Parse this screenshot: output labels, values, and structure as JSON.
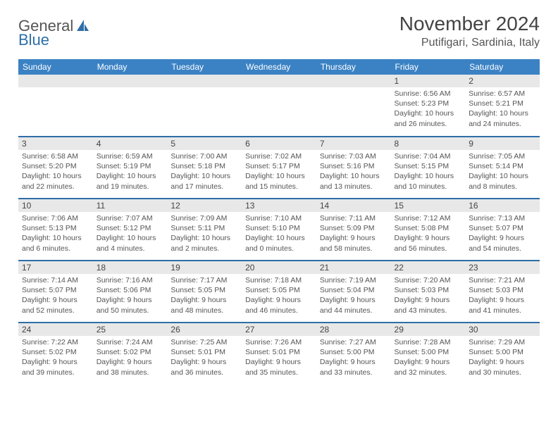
{
  "brand": {
    "part1": "General",
    "part2": "Blue"
  },
  "title": "November 2024",
  "location": "Putifigari, Sardinia, Italy",
  "colors": {
    "header": "#3b82c4",
    "accent": "#2d6fa8",
    "row": "#f0f0f0",
    "day": "#e8e8e8",
    "text": "#333333",
    "subtext": "#555555",
    "bg": "#ffffff"
  },
  "weekdays": [
    "Sunday",
    "Monday",
    "Tuesday",
    "Wednesday",
    "Thursday",
    "Friday",
    "Saturday"
  ],
  "layout": {
    "rows": 5,
    "cols": 7,
    "first_day_col": 5,
    "days_in_month": 30
  },
  "days": {
    "1": {
      "sunrise": "6:56 AM",
      "sunset": "5:23 PM",
      "daylight": "10 hours and 26 minutes."
    },
    "2": {
      "sunrise": "6:57 AM",
      "sunset": "5:21 PM",
      "daylight": "10 hours and 24 minutes."
    },
    "3": {
      "sunrise": "6:58 AM",
      "sunset": "5:20 PM",
      "daylight": "10 hours and 22 minutes."
    },
    "4": {
      "sunrise": "6:59 AM",
      "sunset": "5:19 PM",
      "daylight": "10 hours and 19 minutes."
    },
    "5": {
      "sunrise": "7:00 AM",
      "sunset": "5:18 PM",
      "daylight": "10 hours and 17 minutes."
    },
    "6": {
      "sunrise": "7:02 AM",
      "sunset": "5:17 PM",
      "daylight": "10 hours and 15 minutes."
    },
    "7": {
      "sunrise": "7:03 AM",
      "sunset": "5:16 PM",
      "daylight": "10 hours and 13 minutes."
    },
    "8": {
      "sunrise": "7:04 AM",
      "sunset": "5:15 PM",
      "daylight": "10 hours and 10 minutes."
    },
    "9": {
      "sunrise": "7:05 AM",
      "sunset": "5:14 PM",
      "daylight": "10 hours and 8 minutes."
    },
    "10": {
      "sunrise": "7:06 AM",
      "sunset": "5:13 PM",
      "daylight": "10 hours and 6 minutes."
    },
    "11": {
      "sunrise": "7:07 AM",
      "sunset": "5:12 PM",
      "daylight": "10 hours and 4 minutes."
    },
    "12": {
      "sunrise": "7:09 AM",
      "sunset": "5:11 PM",
      "daylight": "10 hours and 2 minutes."
    },
    "13": {
      "sunrise": "7:10 AM",
      "sunset": "5:10 PM",
      "daylight": "10 hours and 0 minutes."
    },
    "14": {
      "sunrise": "7:11 AM",
      "sunset": "5:09 PM",
      "daylight": "9 hours and 58 minutes."
    },
    "15": {
      "sunrise": "7:12 AM",
      "sunset": "5:08 PM",
      "daylight": "9 hours and 56 minutes."
    },
    "16": {
      "sunrise": "7:13 AM",
      "sunset": "5:07 PM",
      "daylight": "9 hours and 54 minutes."
    },
    "17": {
      "sunrise": "7:14 AM",
      "sunset": "5:07 PM",
      "daylight": "9 hours and 52 minutes."
    },
    "18": {
      "sunrise": "7:16 AM",
      "sunset": "5:06 PM",
      "daylight": "9 hours and 50 minutes."
    },
    "19": {
      "sunrise": "7:17 AM",
      "sunset": "5:05 PM",
      "daylight": "9 hours and 48 minutes."
    },
    "20": {
      "sunrise": "7:18 AM",
      "sunset": "5:05 PM",
      "daylight": "9 hours and 46 minutes."
    },
    "21": {
      "sunrise": "7:19 AM",
      "sunset": "5:04 PM",
      "daylight": "9 hours and 44 minutes."
    },
    "22": {
      "sunrise": "7:20 AM",
      "sunset": "5:03 PM",
      "daylight": "9 hours and 43 minutes."
    },
    "23": {
      "sunrise": "7:21 AM",
      "sunset": "5:03 PM",
      "daylight": "9 hours and 41 minutes."
    },
    "24": {
      "sunrise": "7:22 AM",
      "sunset": "5:02 PM",
      "daylight": "9 hours and 39 minutes."
    },
    "25": {
      "sunrise": "7:24 AM",
      "sunset": "5:02 PM",
      "daylight": "9 hours and 38 minutes."
    },
    "26": {
      "sunrise": "7:25 AM",
      "sunset": "5:01 PM",
      "daylight": "9 hours and 36 minutes."
    },
    "27": {
      "sunrise": "7:26 AM",
      "sunset": "5:01 PM",
      "daylight": "9 hours and 35 minutes."
    },
    "28": {
      "sunrise": "7:27 AM",
      "sunset": "5:00 PM",
      "daylight": "9 hours and 33 minutes."
    },
    "29": {
      "sunrise": "7:28 AM",
      "sunset": "5:00 PM",
      "daylight": "9 hours and 32 minutes."
    },
    "30": {
      "sunrise": "7:29 AM",
      "sunset": "5:00 PM",
      "daylight": "9 hours and 30 minutes."
    }
  },
  "labels": {
    "sunrise": "Sunrise:",
    "sunset": "Sunset:",
    "daylight": "Daylight:"
  }
}
